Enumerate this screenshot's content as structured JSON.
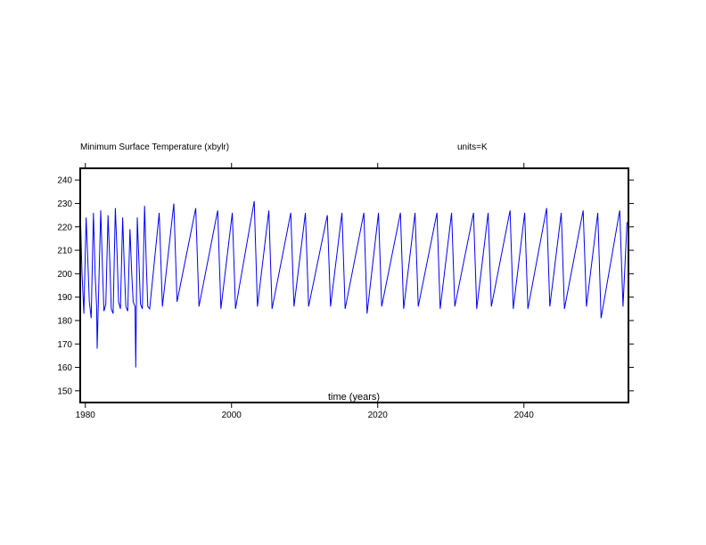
{
  "chart_data": {
    "type": "line",
    "title": "Minimum Surface Temperature (xbylr)",
    "units_label": "units=K",
    "xlabel": "time (years)",
    "ylabel": "",
    "xlim": [
      1979.3,
      2054.3
    ],
    "ylim": [
      145,
      245
    ],
    "x_ticks": [
      1980,
      2000,
      2020,
      2040
    ],
    "y_ticks": [
      150,
      160,
      170,
      180,
      190,
      200,
      210,
      220,
      230,
      240
    ],
    "x_tick_labels": [
      "1980",
      "2000",
      "2020",
      "2040"
    ],
    "y_tick_labels": [
      "150",
      "160",
      "170",
      "180",
      "190",
      "200",
      "210",
      "220",
      "230",
      "240"
    ],
    "grid": false,
    "legend": "none",
    "series": [
      {
        "color": "#0000ff",
        "sampling": "monthly, annual cycle between approx. 183 K and 229 K",
        "x": [
          1979.3,
          1979.55,
          1979.8,
          1980.1,
          1980.35,
          1980.55,
          1980.8,
          1981.1,
          1981.35,
          1981.55,
          1981.62,
          1981.8,
          1982.1,
          1982.35,
          1982.55,
          1982.8,
          1983.1,
          1983.35,
          1983.55,
          1983.8,
          1984.1,
          1984.35,
          1984.55,
          1984.8,
          1985.1,
          1985.35,
          1985.55,
          1985.8,
          1986.1,
          1986.35,
          1986.55,
          1986.8,
          1986.9,
          1987.1,
          1987.35,
          1987.55,
          1987.8,
          1988.1,
          1988.35,
          1988.55,
          1988.8,
          1990.1,
          1990.55,
          1992.1,
          1992.55,
          1995.1,
          1995.55,
          1998.1,
          1998.55,
          2000.1,
          2000.55,
          2003.1,
          2003.55,
          2005.1,
          2005.55,
          2008.1,
          2008.55,
          2010.1,
          2010.55,
          2013.1,
          2013.55,
          2015.1,
          2015.55,
          2018.1,
          2018.55,
          2020.1,
          2020.55,
          2023.1,
          2023.55,
          2025.1,
          2025.55,
          2028.1,
          2028.55,
          2030.1,
          2030.55,
          2033.1,
          2033.55,
          2035.1,
          2035.55,
          2038.1,
          2038.55,
          2040.1,
          2040.55,
          2043.1,
          2043.55,
          2045.1,
          2045.55,
          2048.1,
          2048.55,
          2050.1,
          2050.55,
          2053.1,
          2053.55,
          2054.1
        ],
        "y": [
          228,
          200,
          183,
          224,
          205,
          188,
          181,
          226,
          199,
          186,
          168,
          190,
          227,
          202,
          184,
          187,
          225,
          205,
          185,
          183,
          228,
          208,
          188,
          185,
          224,
          201,
          186,
          184,
          219,
          200,
          188,
          186,
          160,
          224,
          204,
          187,
          185,
          229,
          203,
          186,
          185,
          226,
          186,
          230,
          188,
          228,
          186,
          227,
          185,
          226,
          185,
          231,
          186,
          227,
          185,
          226,
          186,
          226,
          186,
          225,
          186,
          226,
          185,
          226,
          183,
          226,
          186,
          226,
          185,
          226,
          186,
          226,
          185,
          226,
          186,
          226,
          185,
          226,
          186,
          227,
          185,
          226,
          185,
          228,
          186,
          226,
          185,
          227,
          186,
          226,
          181,
          227,
          186,
          222
        ]
      }
    ]
  }
}
